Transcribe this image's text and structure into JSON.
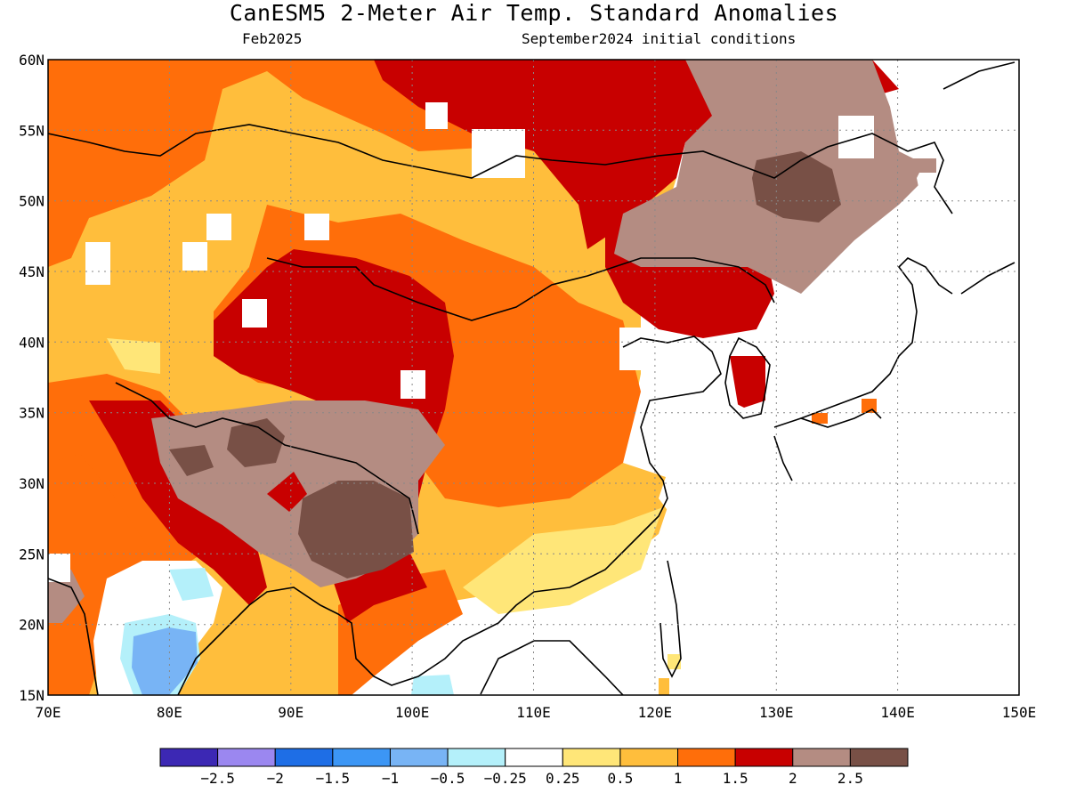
{
  "title": "CanESM5 2-Meter Air Temp. Standard Anomalies",
  "subtitle_left": "Feb2025",
  "subtitle_right": "September2024 initial conditions",
  "map": {
    "lon_range": [
      70,
      150
    ],
    "lat_range": [
      15,
      60
    ],
    "lon_ticks": [
      "70E",
      "80E",
      "90E",
      "100E",
      "110E",
      "120E",
      "130E",
      "140E",
      "150E"
    ],
    "lat_ticks": [
      "15N",
      "20N",
      "25N",
      "30N",
      "35N",
      "40N",
      "45N",
      "50N",
      "55N",
      "60N"
    ],
    "grid": "dotted"
  },
  "colorbar": {
    "labels": [
      "-2.5",
      "-2",
      "-1.5",
      "-1",
      "-0.5",
      "-0.25",
      "0.25",
      "0.5",
      "1",
      "1.5",
      "2",
      "2.5"
    ],
    "colors": [
      "#3c28b4",
      "#9b87f0",
      "#1e6ee6",
      "#3c96f5",
      "#78b4f5",
      "#b4f0fa",
      "#ffffff",
      "#ffe678",
      "#ffbe3c",
      "#ff6e0a",
      "#c80000",
      "#b48c82",
      "#785046"
    ]
  }
}
